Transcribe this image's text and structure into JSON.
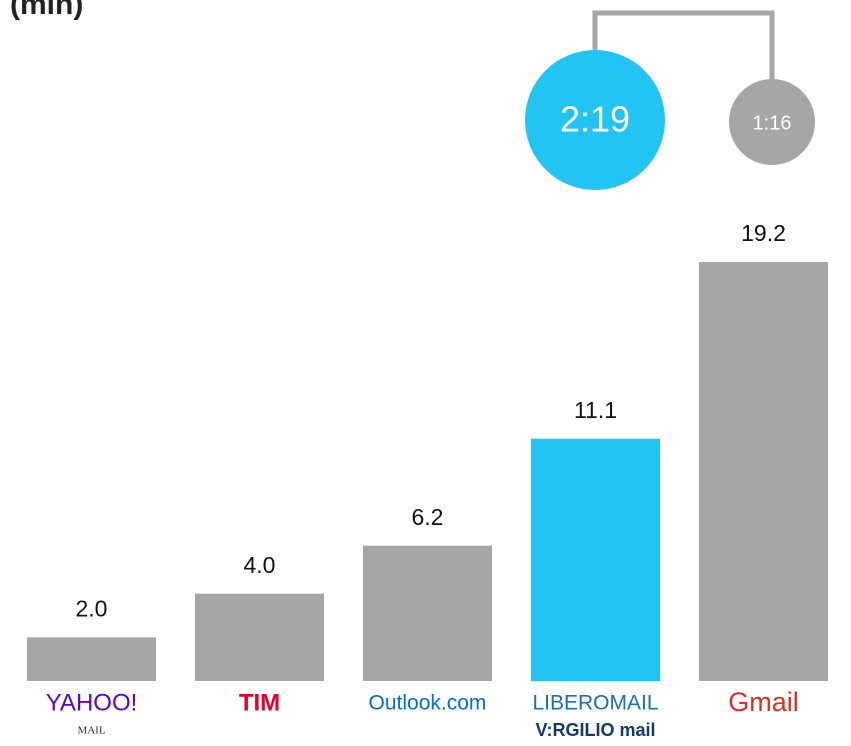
{
  "chart_data": {
    "type": "bar",
    "title": "(min)",
    "categories": [
      [
        "YAHOO!",
        "MAIL"
      ],
      [
        "TIM"
      ],
      [
        "Outlook.com"
      ],
      [
        "LIBEROMAIL",
        "V:RGILIO mail"
      ],
      [
        "Gmail"
      ]
    ],
    "values": [
      2.0,
      4.0,
      6.2,
      11.1,
      19.2
    ],
    "value_labels": [
      "2.0",
      "4.0",
      "6.2",
      "11.1",
      "19.2"
    ],
    "colors": [
      "#a6a6a6",
      "#a6a6a6",
      "#a6a6a6",
      "#21c4f2",
      "#a6a6a6"
    ],
    "ylim": [
      0,
      20
    ],
    "annotations": [
      {
        "text": "2:19",
        "color": "#21c4f2"
      },
      {
        "text": "1:16",
        "color": "#a6a6a6"
      }
    ]
  }
}
